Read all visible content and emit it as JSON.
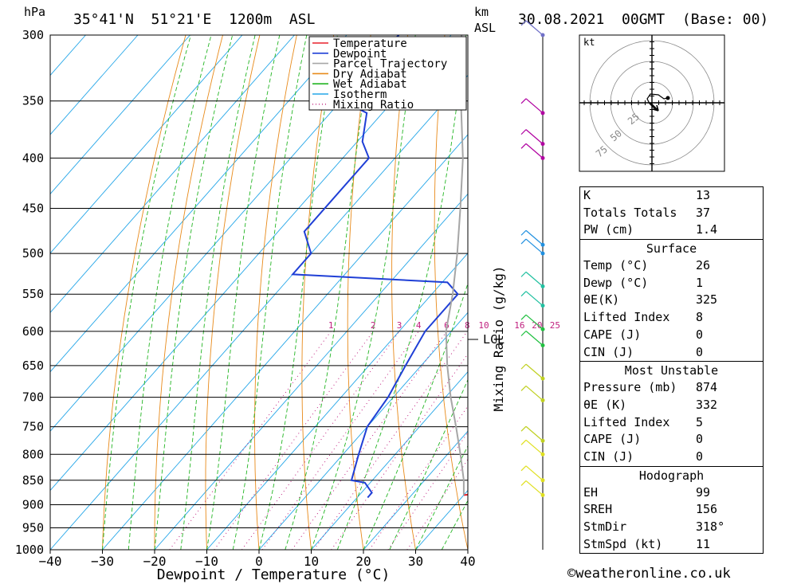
{
  "header": {
    "pressure_unit": "hPa",
    "location": "35°41'N  51°21'E  1200m  ASL",
    "height_unit_line1": "km",
    "height_unit_line2": "ASL",
    "datetime": "30.08.2021  00GMT  (Base: 00)"
  },
  "chart_data": {
    "type": "skew-t",
    "xlabel": "Dewpoint / Temperature (°C)",
    "ylabel": "hPa",
    "x_ticks": [
      -40,
      -30,
      -20,
      -10,
      0,
      10,
      20,
      30,
      40
    ],
    "pressure_levels": [
      300,
      350,
      400,
      450,
      500,
      550,
      600,
      650,
      700,
      750,
      800,
      850,
      900,
      950,
      1000
    ],
    "mixing_ratio_label": "Mixing Ratio (g/kg)",
    "mixing_ratio_values": [
      "1",
      "2",
      "3",
      "4",
      "6",
      "8",
      "10",
      "16",
      "20",
      "25"
    ],
    "lcl_label": "LCL",
    "lcl_pressure": 605,
    "legend": [
      {
        "name": "Temperature",
        "color": "#e8212b",
        "style": "solid"
      },
      {
        "name": "Dewpoint",
        "color": "#1f3fd6",
        "style": "solid"
      },
      {
        "name": "Parcel Trajectory",
        "color": "#a6a6a6",
        "style": "solid"
      },
      {
        "name": "Dry Adiabat",
        "color": "#e88a1a",
        "style": "solid"
      },
      {
        "name": "Wet Adiabat",
        "color": "#22b522",
        "style": "solid"
      },
      {
        "name": "Isotherm",
        "color": "#24a6e8",
        "style": "solid"
      },
      {
        "name": "Mixing Ratio",
        "color": "#c0207f",
        "style": "dotted"
      }
    ],
    "series": [
      {
        "name": "Temperature",
        "points": [
          [
            880,
            30
          ],
          [
            875,
            34
          ],
          [
            860,
            35
          ],
          [
            850,
            34
          ],
          [
            800,
            29
          ],
          [
            700,
            21
          ],
          [
            600,
            12
          ],
          [
            525,
            5
          ],
          [
            505,
            6.5
          ],
          [
            470,
            11
          ],
          [
            400,
            6
          ],
          [
            365,
            4
          ],
          [
            355,
            7
          ],
          [
            300,
            14.5
          ]
        ]
      },
      {
        "name": "Dewpoint",
        "points": [
          [
            885,
            12
          ],
          [
            875,
            12
          ],
          [
            855,
            9
          ],
          [
            850,
            6
          ],
          [
            800,
            3
          ],
          [
            750,
            0
          ],
          [
            700,
            -1
          ],
          [
            650,
            -3
          ],
          [
            600,
            -5
          ],
          [
            550,
            -5
          ],
          [
            535,
            -9
          ],
          [
            525,
            -40
          ],
          [
            500,
            -40
          ],
          [
            475,
            -45
          ],
          [
            400,
            -45
          ],
          [
            385,
            -49
          ],
          [
            360,
            -53
          ],
          [
            345,
            -63
          ],
          [
            300,
            -60
          ]
        ]
      },
      {
        "name": "Parcel Trajectory",
        "points": [
          [
            880,
            30
          ],
          [
            850,
            27.5
          ],
          [
            800,
            22.5
          ],
          [
            750,
            17
          ],
          [
            700,
            11
          ],
          [
            650,
            5
          ],
          [
            600,
            -1
          ],
          [
            550,
            -6
          ],
          [
            500,
            -12
          ],
          [
            450,
            -19
          ],
          [
            400,
            -27
          ],
          [
            350,
            -37
          ],
          [
            300,
            -48
          ]
        ]
      }
    ],
    "wind_barbs": [
      {
        "pressure": 300,
        "color": "#7070c8"
      },
      {
        "pressure": 360,
        "color": "#b000a0"
      },
      {
        "pressure": 387,
        "color": "#b000a0"
      },
      {
        "pressure": 400,
        "color": "#b000a0"
      },
      {
        "pressure": 490,
        "color": "#2090e0"
      },
      {
        "pressure": 500,
        "color": "#2090e0"
      },
      {
        "pressure": 540,
        "color": "#20c0a0"
      },
      {
        "pressure": 565,
        "color": "#20c0a0"
      },
      {
        "pressure": 597,
        "color": "#20c040"
      },
      {
        "pressure": 620,
        "color": "#20c040"
      },
      {
        "pressure": 670,
        "color": "#c0d020"
      },
      {
        "pressure": 705,
        "color": "#c0d020"
      },
      {
        "pressure": 775,
        "color": "#c0d020"
      },
      {
        "pressure": 800,
        "color": "#e0e020"
      },
      {
        "pressure": 850,
        "color": "#e0e020"
      },
      {
        "pressure": 880,
        "color": "#e0e020"
      }
    ],
    "hodograph": {
      "unit": "kt",
      "ring_labels": [
        "25",
        "50",
        "75"
      ]
    }
  },
  "stats": {
    "general": [
      {
        "label": "K",
        "value": "13"
      },
      {
        "label": "Totals Totals",
        "value": "37"
      },
      {
        "label": "PW (cm)",
        "value": "1.4"
      }
    ],
    "surface": {
      "title": "Surface",
      "rows": [
        {
          "label": "Temp (°C)",
          "value": "26"
        },
        {
          "label": "Dewp (°C)",
          "value": "1"
        },
        {
          "label": "θE(K)",
          "value": "325"
        },
        {
          "label": "Lifted Index",
          "value": "8"
        },
        {
          "label": "CAPE (J)",
          "value": "0"
        },
        {
          "label": "CIN (J)",
          "value": "0"
        }
      ]
    },
    "most_unstable": {
      "title": "Most Unstable",
      "rows": [
        {
          "label": "Pressure (mb)",
          "value": "874"
        },
        {
          "label": "θE (K)",
          "value": "332"
        },
        {
          "label": "Lifted Index",
          "value": "5"
        },
        {
          "label": "CAPE (J)",
          "value": "0"
        },
        {
          "label": "CIN (J)",
          "value": "0"
        }
      ]
    },
    "hodograph": {
      "title": "Hodograph",
      "rows": [
        {
          "label": "EH",
          "value": "99"
        },
        {
          "label": "SREH",
          "value": "156"
        },
        {
          "label": "StmDir",
          "value": "318°"
        },
        {
          "label": "StmSpd (kt)",
          "value": "11"
        }
      ]
    }
  },
  "footer": {
    "copyright": "©weatheronline.co.uk"
  }
}
